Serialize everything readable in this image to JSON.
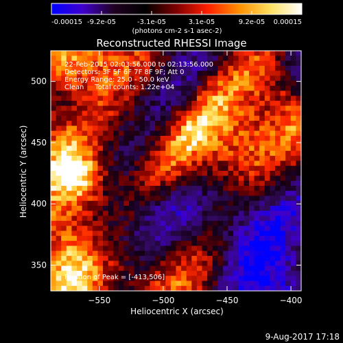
{
  "chart_data": {
    "type": "heatmap",
    "title": "Reconstructed RHESSI Image",
    "xlabel": "Heliocentric X (arcsec)",
    "ylabel": "Heliocentric Y (arcsec)",
    "xlim": [
      -588,
      -392
    ],
    "ylim": [
      329,
      525
    ],
    "x_ticks": [
      "-550",
      "-500",
      "-450",
      "-400"
    ],
    "x_tick_values": [
      -550,
      -500,
      -450,
      -400
    ],
    "y_ticks": [
      "350",
      "400",
      "450",
      "500"
    ],
    "y_tick_values": [
      350,
      400,
      450,
      500
    ],
    "colorbar": {
      "tick_labels": [
        "-0.00015",
        "-9.2e-05",
        "-3.1e-05",
        "3.1e-05",
        "9.2e-05",
        "0.00015"
      ],
      "range": [
        -0.00015,
        0.00015
      ],
      "unit_label": "(photons cm-2 s-1 asec-2)",
      "colormap": [
        "#0000ff",
        "#4000cc",
        "#200020",
        "#000000",
        "#800000",
        "#ff2000",
        "#ff9000",
        "#ffe060",
        "#ffffff"
      ]
    },
    "annotations": [
      "22-Feb-2015 02:03:56.000 to 02:13:56.000",
      "Detectors: 3F 5F 6F 7F 8F 9F; Att 0",
      "Energy Range: 25.0 - 50.0 keV",
      "Clean     Total counts: 1.22e+04",
      "Position of Peak = [-413,506]"
    ],
    "peak_position": [
      -413,
      506
    ]
  },
  "footer_date": "9-Aug-2017 17:18"
}
